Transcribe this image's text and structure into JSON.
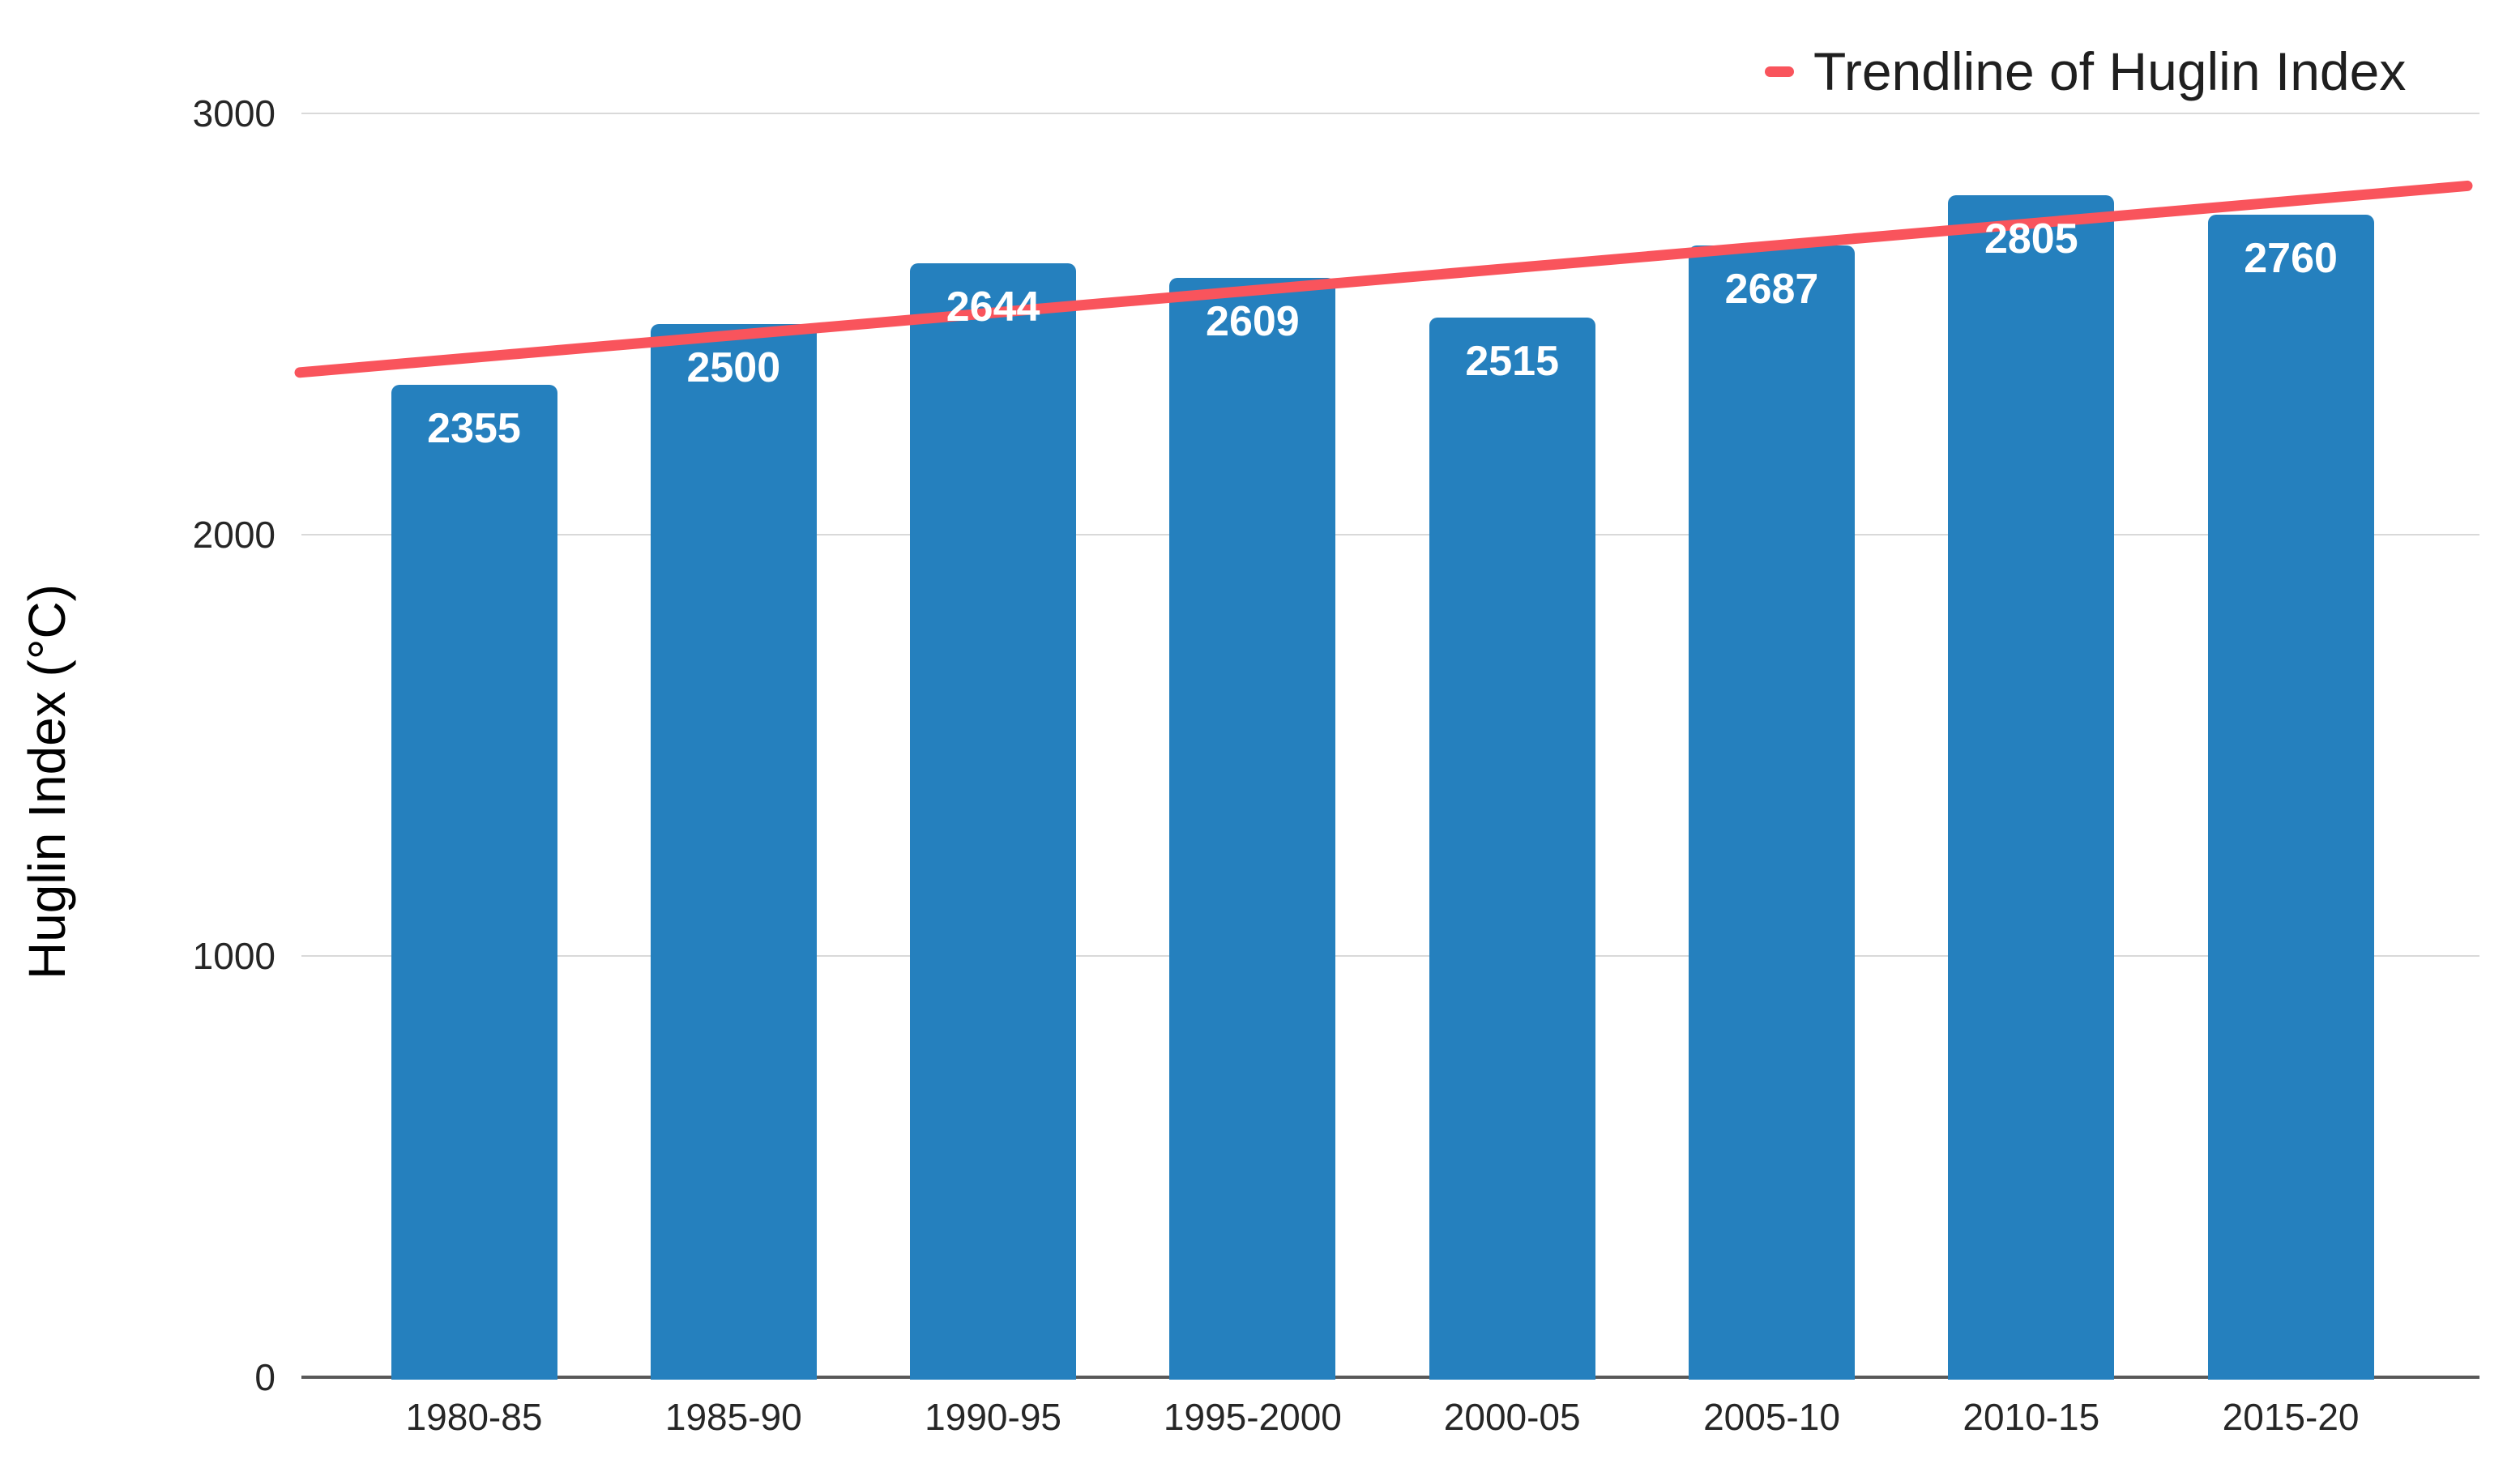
{
  "chart_data": {
    "type": "bar",
    "title": "",
    "xlabel": "",
    "ylabel": "Huglin Index (°C)",
    "categories": [
      "1980-85",
      "1985-90",
      "1990-95",
      "1995-2000",
      "2000-05",
      "2005-10",
      "2010-15",
      "2015-20"
    ],
    "values": [
      2355,
      2500,
      2644,
      2609,
      2515,
      2687,
      2805,
      2760
    ],
    "y_ticks": [
      0,
      1000,
      2000,
      3000
    ],
    "ylim": [
      0,
      3000
    ],
    "grid": "horizontal",
    "legend": {
      "label": "Trendline of Huglin Index",
      "position": "top-right"
    },
    "trendline": {
      "name": "Trendline of Huglin Index",
      "start_value": 2385,
      "end_value": 2828
    },
    "colors": {
      "bar": "#2580be",
      "trendline": "#f9545c",
      "bar_label_text": "#ffffff",
      "gridline": "#d9d9d9",
      "axis_line": "#595959",
      "tick_text": "#262626",
      "legend_text": "#1f1f1f"
    }
  }
}
